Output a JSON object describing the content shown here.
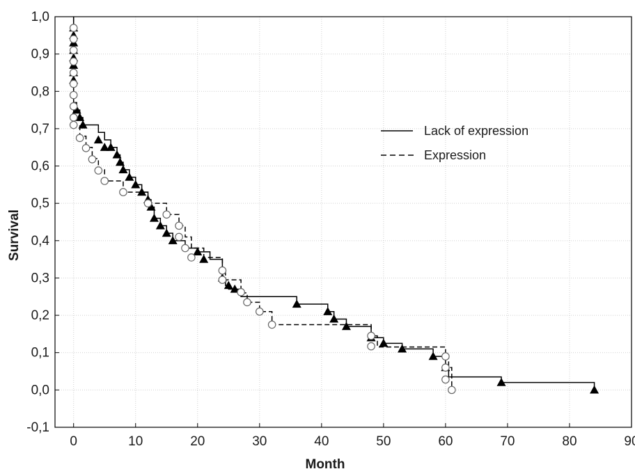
{
  "chart_data": {
    "type": "line",
    "subtype": "kaplan-meier-step",
    "title": "",
    "xlabel": "Month",
    "ylabel": "Survival",
    "xlim": [
      -3,
      90
    ],
    "ylim": [
      -0.1,
      1.0
    ],
    "x_ticks": [
      0,
      10,
      20,
      30,
      40,
      50,
      60,
      70,
      80,
      90
    ],
    "x_tick_labels": [
      "0",
      "10",
      "20",
      "30",
      "40",
      "50",
      "60",
      "70",
      "80",
      "90"
    ],
    "y_ticks": [
      -0.1,
      0.0,
      0.1,
      0.2,
      0.3,
      0.4,
      0.5,
      0.6,
      0.7,
      0.8,
      0.9,
      1.0
    ],
    "y_tick_labels": [
      "-0,1",
      "0,0",
      "0,1",
      "0,2",
      "0,3",
      "0,4",
      "0,5",
      "0,6",
      "0,7",
      "0,8",
      "0,9",
      "1,0"
    ],
    "grid": true,
    "legend_position": "top-right",
    "series": [
      {
        "name": "Lack of expression",
        "line_style": "solid",
        "marker": "filled-triangle",
        "color": "#000000",
        "step_x": [
          0,
          0,
          0,
          0,
          0,
          0,
          0,
          0,
          0,
          0,
          0.5,
          1,
          1.5,
          4,
          5,
          6,
          7,
          7.5,
          8,
          9,
          10,
          11,
          12,
          12.5,
          13,
          14,
          15,
          16,
          18,
          20,
          22,
          24,
          24.5,
          25,
          27,
          36,
          41,
          42,
          44,
          48,
          50,
          53,
          58,
          60,
          60.5,
          69,
          84
        ],
        "step_y": [
          1.0,
          0.98,
          0.96,
          0.94,
          0.92,
          0.9,
          0.88,
          0.86,
          0.84,
          0.77,
          0.75,
          0.73,
          0.71,
          0.69,
          0.67,
          0.65,
          0.63,
          0.61,
          0.59,
          0.57,
          0.55,
          0.53,
          0.51,
          0.49,
          0.46,
          0.44,
          0.42,
          0.4,
          0.38,
          0.37,
          0.35,
          0.3,
          0.28,
          0.27,
          0.25,
          0.23,
          0.21,
          0.19,
          0.17,
          0.14,
          0.125,
          0.11,
          0.09,
          0.06,
          0.035,
          0.02,
          0.0
        ],
        "markers": [
          [
            0,
            0.97
          ],
          [
            0,
            0.95
          ],
          [
            0,
            0.93
          ],
          [
            0,
            0.91
          ],
          [
            0,
            0.89
          ],
          [
            0,
            0.87
          ],
          [
            0,
            0.85
          ],
          [
            0,
            0.83
          ],
          [
            0.5,
            0.75
          ],
          [
            1,
            0.73
          ],
          [
            1.5,
            0.71
          ],
          [
            4,
            0.67
          ],
          [
            5,
            0.65
          ],
          [
            6,
            0.65
          ],
          [
            7,
            0.63
          ],
          [
            7.5,
            0.61
          ],
          [
            8,
            0.59
          ],
          [
            9,
            0.57
          ],
          [
            10,
            0.55
          ],
          [
            11,
            0.53
          ],
          [
            12,
            0.51
          ],
          [
            12.5,
            0.49
          ],
          [
            13,
            0.46
          ],
          [
            14,
            0.44
          ],
          [
            15,
            0.42
          ],
          [
            16,
            0.4
          ],
          [
            20,
            0.37
          ],
          [
            21,
            0.35
          ],
          [
            24,
            0.3
          ],
          [
            25,
            0.28
          ],
          [
            26,
            0.27
          ],
          [
            36,
            0.23
          ],
          [
            41,
            0.21
          ],
          [
            42,
            0.19
          ],
          [
            44,
            0.17
          ],
          [
            48,
            0.14
          ],
          [
            50,
            0.125
          ],
          [
            53,
            0.11
          ],
          [
            58,
            0.09
          ],
          [
            60,
            0.06
          ],
          [
            69,
            0.02
          ],
          [
            84,
            0.0
          ]
        ]
      },
      {
        "name": "Expression",
        "line_style": "dashed",
        "marker": "open-circle",
        "color": "#000000",
        "step_x": [
          0,
          0,
          0,
          0,
          0,
          0,
          0,
          0,
          0,
          0,
          0.3,
          1,
          2,
          3,
          4,
          5,
          8,
          12,
          15,
          17,
          18,
          19,
          21,
          24,
          24.5,
          27,
          28,
          30,
          32,
          48,
          49,
          60,
          60.5,
          61
        ],
        "step_y": [
          1.0,
          0.97,
          0.94,
          0.91,
          0.88,
          0.85,
          0.82,
          0.79,
          0.76,
          0.73,
          0.71,
          0.68,
          0.65,
          0.62,
          0.59,
          0.56,
          0.53,
          0.5,
          0.47,
          0.44,
          0.41,
          0.38,
          0.355,
          0.32,
          0.295,
          0.26,
          0.235,
          0.21,
          0.175,
          0.145,
          0.115,
          0.09,
          0.06,
          0.0
        ],
        "markers": [
          [
            0,
            0.97
          ],
          [
            0,
            0.94
          ],
          [
            0,
            0.91
          ],
          [
            0,
            0.88
          ],
          [
            0,
            0.85
          ],
          [
            0,
            0.82
          ],
          [
            0,
            0.79
          ],
          [
            0,
            0.76
          ],
          [
            0,
            0.73
          ],
          [
            0,
            0.71
          ],
          [
            1,
            0.675
          ],
          [
            2,
            0.648
          ],
          [
            3,
            0.618
          ],
          [
            4,
            0.588
          ],
          [
            5,
            0.56
          ],
          [
            8,
            0.53
          ],
          [
            12,
            0.5
          ],
          [
            15,
            0.47
          ],
          [
            17,
            0.44
          ],
          [
            17,
            0.41
          ],
          [
            18,
            0.38
          ],
          [
            19,
            0.355
          ],
          [
            24,
            0.32
          ],
          [
            24,
            0.295
          ],
          [
            27,
            0.262
          ],
          [
            28,
            0.235
          ],
          [
            30,
            0.21
          ],
          [
            32,
            0.175
          ],
          [
            48,
            0.145
          ],
          [
            48,
            0.117
          ],
          [
            60,
            0.09
          ],
          [
            60,
            0.06
          ],
          [
            60,
            0.028
          ],
          [
            61,
            0.0
          ]
        ]
      }
    ]
  }
}
